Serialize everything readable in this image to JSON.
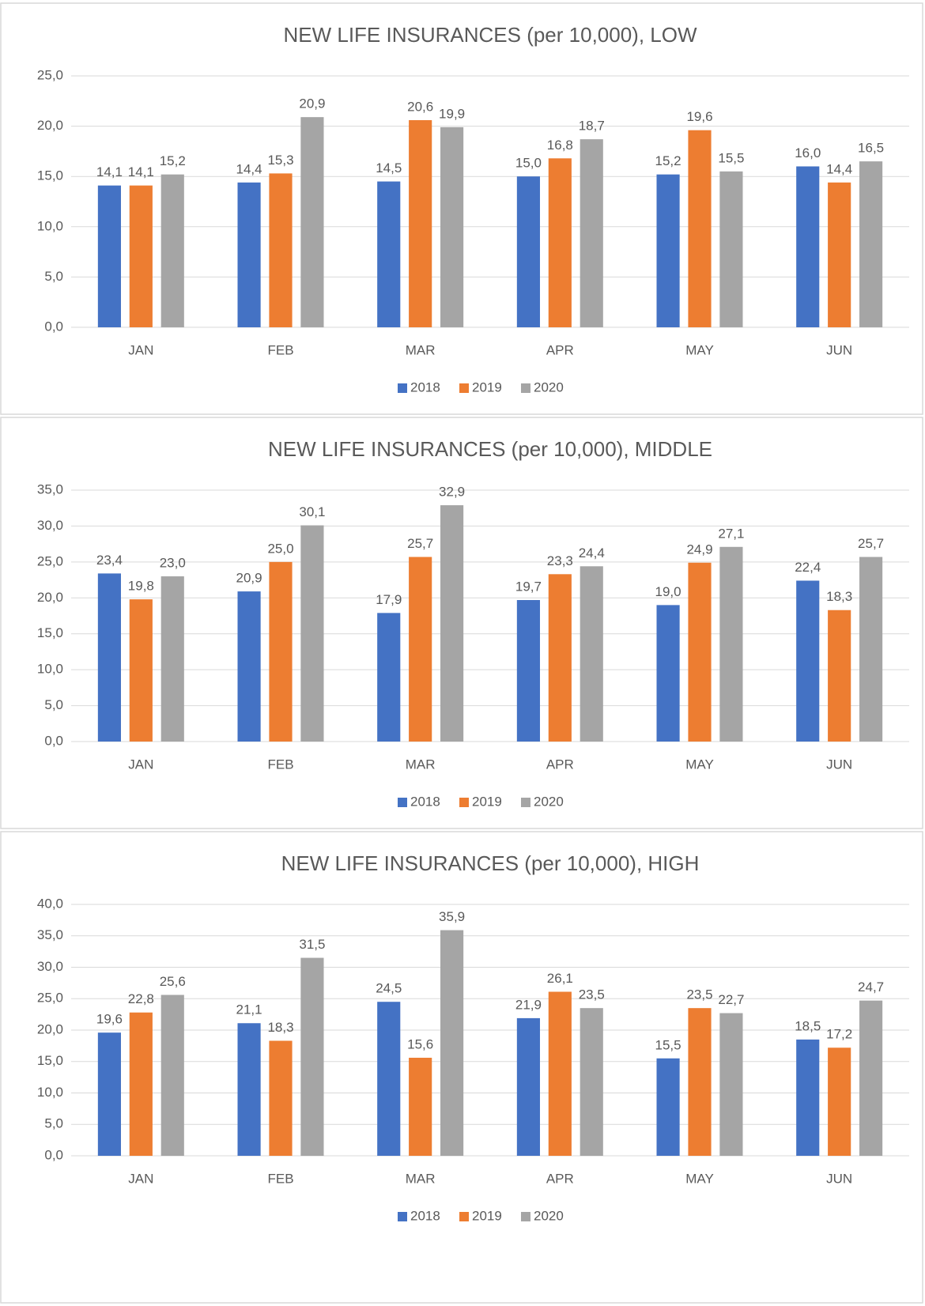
{
  "chart_data": [
    {
      "type": "bar",
      "title": "NEW LIFE INSURANCES (per 10,000), LOW",
      "categories": [
        "JAN",
        "FEB",
        "MAR",
        "APR",
        "MAY",
        "JUN"
      ],
      "series": [
        {
          "name": "2018",
          "color": "#4472c4",
          "values": [
            14.1,
            14.4,
            14.5,
            15.0,
            15.2,
            16.0
          ],
          "value_labels": [
            "14,1",
            "14,4",
            "14,5",
            "15,0",
            "15,2",
            "16,0"
          ]
        },
        {
          "name": "2019",
          "color": "#ed7d31",
          "values": [
            14.1,
            15.3,
            20.6,
            16.8,
            19.6,
            14.4
          ],
          "value_labels": [
            "14,1",
            "15,3",
            "20,6",
            "16,8",
            "19,6",
            "14,4"
          ]
        },
        {
          "name": "2020",
          "color": "#a5a5a5",
          "values": [
            15.2,
            20.9,
            19.9,
            18.7,
            15.5,
            16.5
          ],
          "value_labels": [
            "15,2",
            "20,9",
            "19,9",
            "18,7",
            "15,5",
            "16,5"
          ]
        }
      ],
      "ylim": [
        0,
        25
      ],
      "yticks": [
        {
          "value": 0,
          "label": "0,0"
        },
        {
          "value": 5,
          "label": "5,0"
        },
        {
          "value": 10,
          "label": "10,0"
        },
        {
          "value": 15,
          "label": "15,0"
        },
        {
          "value": 20,
          "label": "20,0"
        },
        {
          "value": 25,
          "label": "25,0"
        }
      ],
      "grid": true,
      "legend": "bottom"
    },
    {
      "type": "bar",
      "title": "NEW LIFE INSURANCES (per 10,000), MIDDLE",
      "categories": [
        "JAN",
        "FEB",
        "MAR",
        "APR",
        "MAY",
        "JUN"
      ],
      "series": [
        {
          "name": "2018",
          "color": "#4472c4",
          "values": [
            23.4,
            20.9,
            17.9,
            19.7,
            19.0,
            22.4
          ],
          "value_labels": [
            "23,4",
            "20,9",
            "17,9",
            "19,7",
            "19,0",
            "22,4"
          ]
        },
        {
          "name": "2019",
          "color": "#ed7d31",
          "values": [
            19.8,
            25.0,
            25.7,
            23.3,
            24.9,
            18.3
          ],
          "value_labels": [
            "19,8",
            "25,0",
            "25,7",
            "23,3",
            "24,9",
            "18,3"
          ]
        },
        {
          "name": "2020",
          "color": "#a5a5a5",
          "values": [
            23.0,
            30.1,
            32.9,
            24.4,
            27.1,
            25.7
          ],
          "value_labels": [
            "23,0",
            "30,1",
            "32,9",
            "24,4",
            "27,1",
            "25,7"
          ]
        }
      ],
      "ylim": [
        0,
        35
      ],
      "yticks": [
        {
          "value": 0,
          "label": "0,0"
        },
        {
          "value": 5,
          "label": "5,0"
        },
        {
          "value": 10,
          "label": "10,0"
        },
        {
          "value": 15,
          "label": "15,0"
        },
        {
          "value": 20,
          "label": "20,0"
        },
        {
          "value": 25,
          "label": "25,0"
        },
        {
          "value": 30,
          "label": "30,0"
        },
        {
          "value": 35,
          "label": "35,0"
        }
      ],
      "grid": true,
      "legend": "bottom"
    },
    {
      "type": "bar",
      "title": "NEW LIFE INSURANCES (per 10,000), HIGH",
      "categories": [
        "JAN",
        "FEB",
        "MAR",
        "APR",
        "MAY",
        "JUN"
      ],
      "series": [
        {
          "name": "2018",
          "color": "#4472c4",
          "values": [
            19.6,
            21.1,
            24.5,
            21.9,
            15.5,
            18.5
          ],
          "value_labels": [
            "19,6",
            "21,1",
            "24,5",
            "21,9",
            "15,5",
            "18,5"
          ]
        },
        {
          "name": "2019",
          "color": "#ed7d31",
          "values": [
            22.8,
            18.3,
            15.6,
            26.1,
            23.5,
            17.2
          ],
          "value_labels": [
            "22,8",
            "18,3",
            "15,6",
            "26,1",
            "23,5",
            "17,2"
          ]
        },
        {
          "name": "2020",
          "color": "#a5a5a5",
          "values": [
            25.6,
            31.5,
            35.9,
            23.5,
            22.7,
            24.7
          ],
          "value_labels": [
            "25,6",
            "31,5",
            "35,9",
            "23,5",
            "22,7",
            "24,7"
          ]
        }
      ],
      "ylim": [
        0,
        40
      ],
      "yticks": [
        {
          "value": 0,
          "label": "0,0"
        },
        {
          "value": 5,
          "label": "5,0"
        },
        {
          "value": 10,
          "label": "10,0"
        },
        {
          "value": 15,
          "label": "15,0"
        },
        {
          "value": 20,
          "label": "20,0"
        },
        {
          "value": 25,
          "label": "25,0"
        },
        {
          "value": 30,
          "label": "30,0"
        },
        {
          "value": 35,
          "label": "35,0"
        },
        {
          "value": 40,
          "label": "40,0"
        }
      ],
      "grid": true,
      "legend": "bottom"
    }
  ]
}
